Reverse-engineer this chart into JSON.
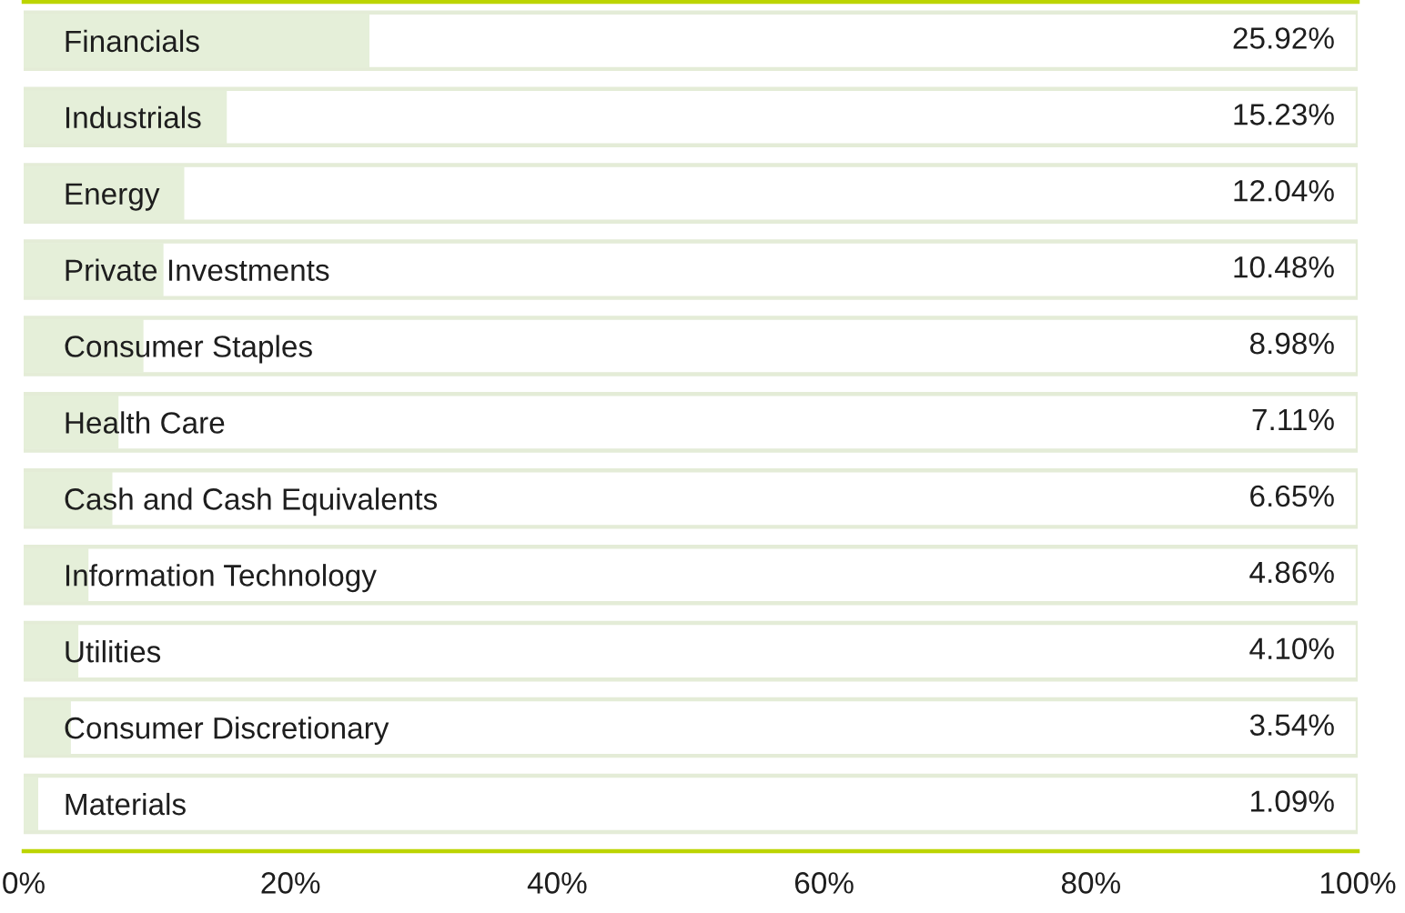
{
  "chart_data": {
    "type": "bar",
    "orientation": "horizontal",
    "categories": [
      "Financials",
      "Industrials",
      "Energy",
      "Private Investments",
      "Consumer Staples",
      "Health Care",
      "Cash and Cash Equivalents",
      "Information Technology",
      "Utilities",
      "Consumer Discretionary",
      "Materials"
    ],
    "values": [
      25.92,
      15.23,
      12.04,
      10.48,
      8.98,
      7.11,
      6.65,
      4.86,
      4.1,
      3.54,
      1.09
    ],
    "value_labels": [
      "25.92%",
      "15.23%",
      "12.04%",
      "10.48%",
      "8.98%",
      "7.11%",
      "6.65%",
      "4.86%",
      "4.10%",
      "3.54%",
      "1.09%"
    ],
    "color": "#e5efd9",
    "xlim": [
      0,
      100
    ],
    "xticks": [
      {
        "value": 0,
        "label": "0%"
      },
      {
        "value": 20,
        "label": "20%"
      },
      {
        "value": 40,
        "label": "40%"
      },
      {
        "value": 60,
        "label": "60%"
      },
      {
        "value": 80,
        "label": "80%"
      },
      {
        "value": 100,
        "label": "100%"
      }
    ]
  }
}
